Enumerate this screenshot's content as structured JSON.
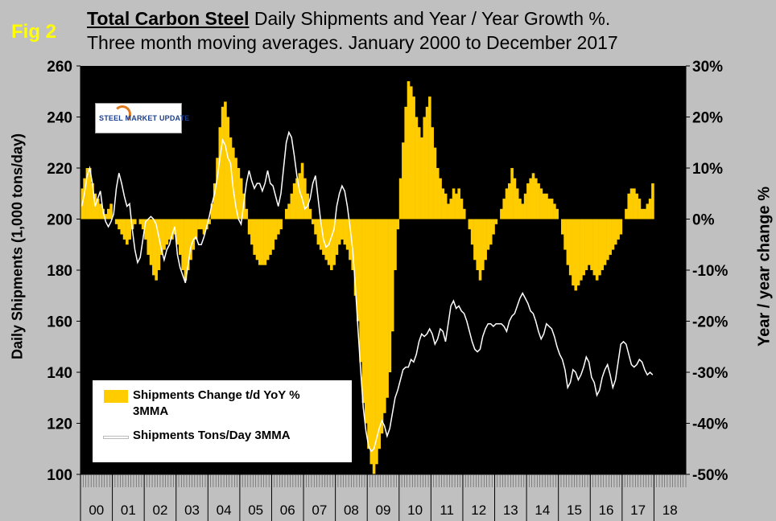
{
  "figure_label": "Fig 2",
  "title": {
    "bold": "Total Carbon Steel",
    "rest": " Daily Shipments and Year / Year Growth %.",
    "line2": "Three month moving averages. January 2000 to December 2017"
  },
  "logo": {
    "text": "STEEL MARKET UPDATE"
  },
  "axes": {
    "left_title": "Daily Shipments (1,000 tons/day)",
    "right_title": "Year / year change %",
    "left_ticks": [
      "100",
      "120",
      "140",
      "160",
      "180",
      "200",
      "220",
      "240",
      "260"
    ],
    "right_ticks": [
      "-50%",
      "-40%",
      "-30%",
      "-20%",
      "-10%",
      "0%",
      "10%",
      "20%",
      "30%"
    ],
    "x_ticks": [
      "00",
      "01",
      "02",
      "03",
      "04",
      "05",
      "06",
      "07",
      "08",
      "09",
      "10",
      "11",
      "12",
      "13",
      "14",
      "15",
      "16",
      "17",
      "18"
    ]
  },
  "legend": {
    "bar_label": "Shipments Change t/d YoY %",
    "bar_label_2": "3MMA",
    "line_label": "Shipments Tons/Day 3MMA"
  },
  "colors": {
    "plot_bg": "#000000",
    "page_bg": "#c0c0c0",
    "bar": "#ffcc00",
    "line": "#ffffff",
    "title_accent": "#ffff00"
  },
  "chart_data": {
    "type": "bar+line",
    "x_start": "2000-01",
    "x_end": "2017-12",
    "x_unit": "month",
    "left_ylim": [
      100,
      260
    ],
    "right_ylim": [
      -50,
      30
    ],
    "grid": false,
    "legend_position": "bottom-left",
    "series": [
      {
        "name": "Shipments Change t/d YoY % 3MMA",
        "axis": "right",
        "kind": "bar",
        "values": [
          6,
          8,
          10,
          10,
          7,
          5,
          4,
          3,
          2,
          1,
          2,
          3,
          0,
          -1,
          -2,
          -3,
          -4,
          -5,
          -4,
          -2,
          -1,
          0,
          -1,
          -2,
          -4,
          -7,
          -9,
          -11,
          -12,
          -10,
          -7,
          -6,
          -5,
          -4,
          -4,
          -3,
          -5,
          -7,
          -10,
          -12,
          -10,
          -8,
          -6,
          -4,
          -2,
          -2,
          -3,
          -2,
          -1,
          3,
          7,
          12,
          18,
          22,
          23,
          20,
          16,
          14,
          12,
          10,
          8,
          5,
          2,
          -3,
          -5,
          -7,
          -8,
          -9,
          -9,
          -9,
          -8,
          -7,
          -6,
          -4,
          -3,
          -2,
          0,
          2,
          3,
          5,
          7,
          8,
          9,
          11,
          8,
          5,
          2,
          -1,
          -3,
          -5,
          -6,
          -7,
          -8,
          -9,
          -10,
          -9,
          -7,
          -5,
          -4,
          -5,
          -6,
          -8,
          -10,
          -15,
          -20,
          -28,
          -36,
          -40,
          -45,
          -48,
          -50,
          -48,
          -45,
          -42,
          -38,
          -35,
          -30,
          -22,
          -10,
          -2,
          8,
          15,
          22,
          27,
          26,
          24,
          20,
          18,
          16,
          20,
          22,
          24,
          18,
          14,
          10,
          8,
          6,
          5,
          3,
          4,
          6,
          5,
          6,
          4,
          2,
          0,
          -2,
          -5,
          -8,
          -10,
          -12,
          -10,
          -8,
          -6,
          -5,
          -3,
          -1,
          0,
          2,
          4,
          6,
          7,
          10,
          8,
          6,
          4,
          3,
          5,
          7,
          8,
          9,
          8,
          7,
          6,
          5,
          5,
          4,
          4,
          3,
          2,
          0,
          -3,
          -6,
          -9,
          -11,
          -13,
          -14,
          -13,
          -12,
          -11,
          -10,
          -9,
          -10,
          -11,
          -12,
          -11,
          -10,
          -9,
          -8,
          -7,
          -6,
          -5,
          -4,
          -3,
          0,
          2,
          5,
          6,
          6,
          5,
          4,
          2,
          2,
          3,
          4,
          7
        ]
      },
      {
        "name": "Shipments Tons/Day 3MMA",
        "axis": "left",
        "kind": "line",
        "values": [
          205,
          210,
          217,
          220,
          214,
          205,
          208,
          211,
          203,
          199,
          197,
          199,
          202,
          212,
          218,
          214,
          209,
          205,
          206,
          196,
          188,
          183,
          185,
          192,
          199,
          200,
          201,
          200,
          198,
          193,
          188,
          184,
          188,
          190,
          194,
          197,
          186,
          181,
          178,
          175,
          182,
          189,
          192,
          193,
          190,
          190,
          193,
          197,
          201,
          206,
          210,
          216,
          224,
          231,
          229,
          224,
          222,
          212,
          205,
          200,
          198,
          206,
          214,
          219,
          215,
          212,
          214,
          214,
          211,
          214,
          219,
          214,
          213,
          209,
          205,
          210,
          220,
          230,
          234,
          232,
          225,
          217,
          211,
          208,
          204,
          205,
          208,
          214,
          217,
          208,
          199,
          192,
          189,
          190,
          193,
          196,
          205,
          210,
          213,
          211,
          205,
          197,
          188,
          174,
          157,
          141,
          126,
          117,
          111,
          109,
          110,
          114,
          118,
          121,
          119,
          115,
          118,
          124,
          130,
          133,
          137,
          141,
          142,
          142,
          145,
          144,
          147,
          152,
          155,
          154,
          155,
          157,
          155,
          151,
          153,
          157,
          156,
          152,
          159,
          166,
          168,
          165,
          166,
          164,
          163,
          160,
          156,
          152,
          149,
          148,
          149,
          154,
          157,
          159,
          159,
          158,
          159,
          159,
          159,
          158,
          156,
          160,
          162,
          163,
          166,
          169,
          171,
          169,
          167,
          164,
          163,
          160,
          156,
          153,
          155,
          159,
          158,
          157,
          154,
          150,
          147,
          145,
          141,
          134,
          136,
          141,
          140,
          137,
          139,
          142,
          146,
          144,
          138,
          136,
          131,
          133,
          138,
          141,
          143,
          139,
          134,
          137,
          144,
          151,
          152,
          151,
          147,
          143,
          142,
          143,
          145,
          144,
          141,
          139,
          140,
          139
        ]
      }
    ]
  }
}
